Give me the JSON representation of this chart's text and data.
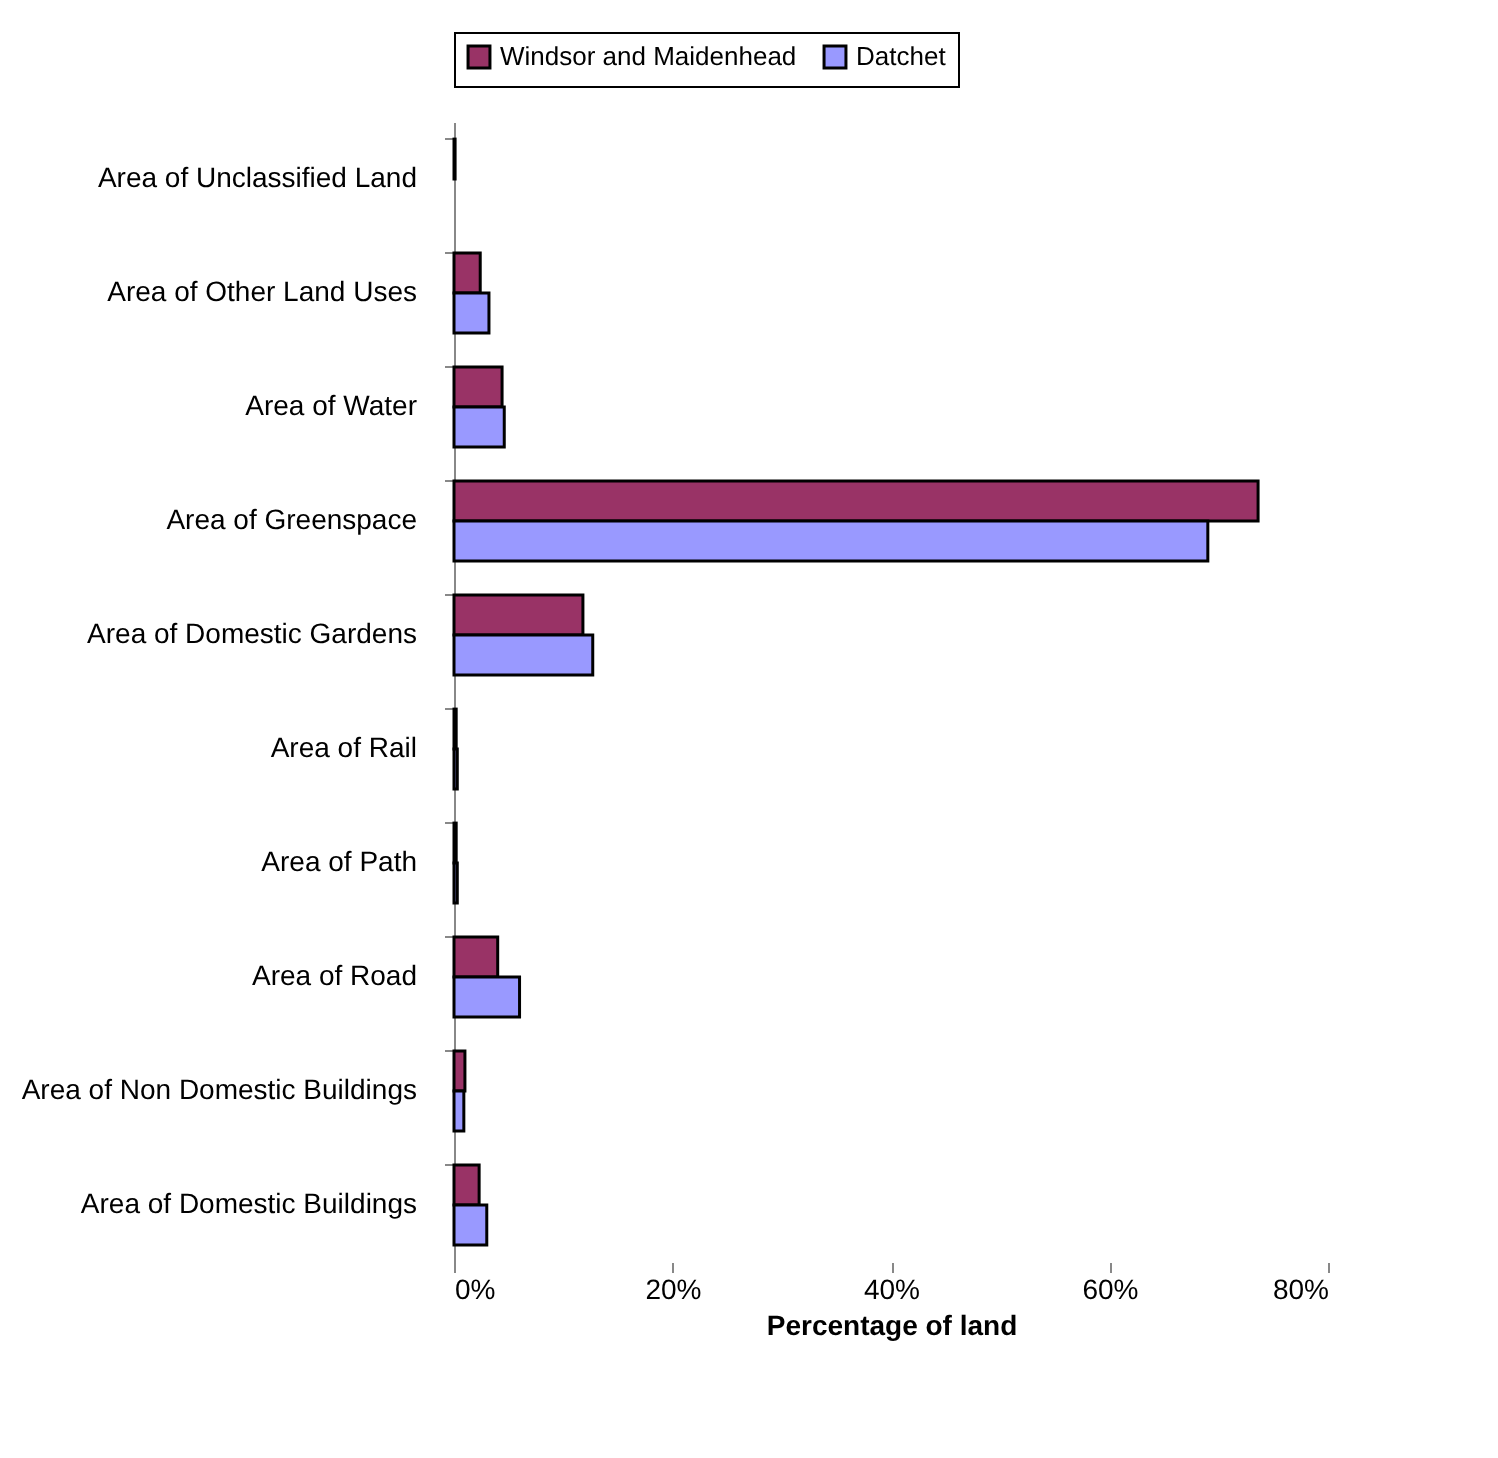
{
  "chart_data": {
    "type": "bar",
    "orientation": "horizontal",
    "xlabel": "Percentage of land",
    "categories": [
      "Area of Unclassified Land",
      "Area of Other Land Uses",
      "Area of Water",
      "Area of Greenspace",
      "Area of Domestic Gardens",
      "Area of Rail",
      "Area of Path",
      "Area of Road",
      "Area of Non Domestic Buildings",
      "Area of Domestic Buildings"
    ],
    "series": [
      {
        "name": "Windsor and Maidenhead",
        "color": "#993366",
        "values": [
          0.1,
          2.4,
          4.4,
          73.6,
          11.8,
          0.2,
          0.2,
          4.0,
          1.0,
          2.3
        ]
      },
      {
        "name": "Datchet",
        "color": "#9999ff",
        "values": [
          null,
          3.2,
          4.6,
          69.0,
          12.7,
          0.3,
          0.3,
          6.0,
          0.9,
          3.0
        ]
      }
    ],
    "xlim": [
      0,
      80
    ],
    "xticks": [
      {
        "value": 0,
        "label": "0%"
      },
      {
        "value": 20,
        "label": "20%"
      },
      {
        "value": 40,
        "label": "40%"
      },
      {
        "value": 60,
        "label": "60%"
      },
      {
        "value": 80,
        "label": "80%"
      }
    ],
    "grid": false,
    "legend": "top"
  }
}
